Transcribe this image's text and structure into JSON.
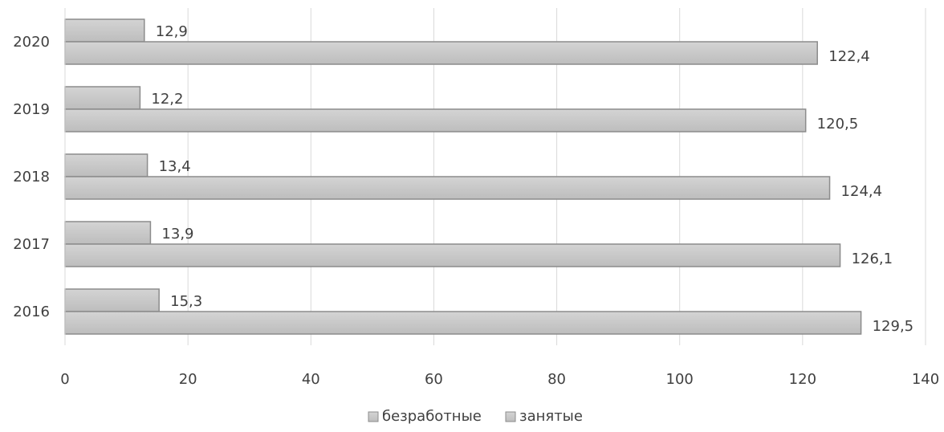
{
  "chart_data": {
    "type": "bar",
    "orientation": "horizontal",
    "categories": [
      "2020",
      "2019",
      "2018",
      "2017",
      "2016"
    ],
    "series": [
      {
        "name": "безработные",
        "values": [
          12.9,
          12.2,
          13.4,
          13.9,
          15.3
        ],
        "labels": [
          "12,9",
          "12,2",
          "13,4",
          "13,9",
          "15,3"
        ]
      },
      {
        "name": "занятые",
        "values": [
          122.4,
          120.5,
          124.4,
          126.1,
          129.5
        ],
        "labels": [
          "122,4",
          "120,5",
          "124,4",
          "126,1",
          "129,5"
        ]
      }
    ],
    "xlim": [
      0,
      140
    ],
    "xticks": [
      "0",
      "20",
      "40",
      "60",
      "80",
      "100",
      "120",
      "140"
    ],
    "grid": "vertical",
    "legend": "bottom-center",
    "colors": {
      "bar_fill": "#c4c4c4",
      "bar_stroke": "#8c8c8c",
      "grid": "#d9d9d9",
      "text": "#404040"
    }
  }
}
